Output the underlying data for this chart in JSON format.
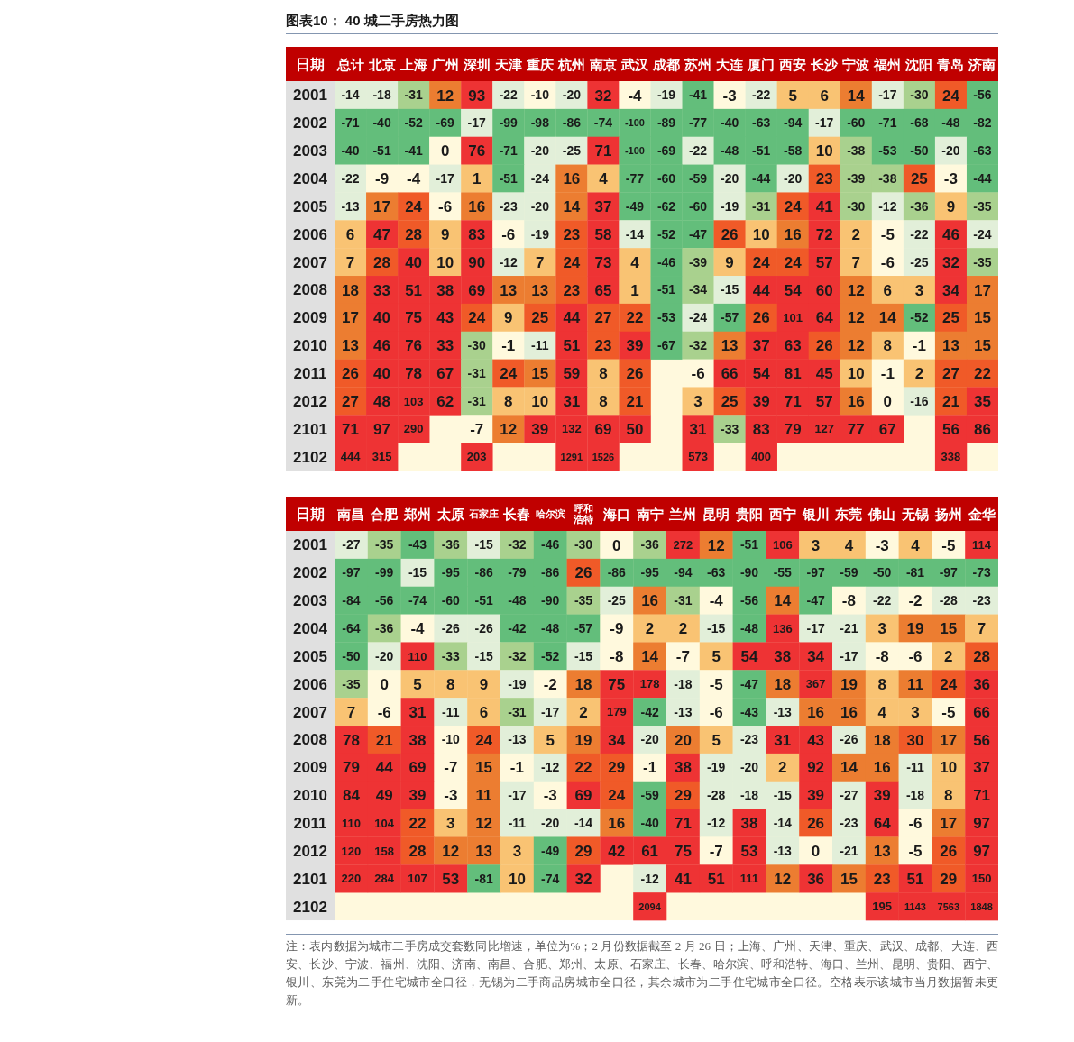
{
  "chart_data": [
    {
      "type": "heatmap",
      "title": "图表10： 40 城二手房热力图",
      "ylabel": "日期",
      "data_labels": true,
      "categories": [
        "总计",
        "北京",
        "上海",
        "广州",
        "深圳",
        "天津",
        "重庆",
        "杭州",
        "南京",
        "武汉",
        "成都",
        "苏州",
        "大连",
        "厦门",
        "西安",
        "长沙",
        "宁波",
        "福州",
        "沈阳",
        "青岛",
        "济南"
      ],
      "y_categories": [
        "2001",
        "2002",
        "2003",
        "2004",
        "2005",
        "2006",
        "2007",
        "2008",
        "2009",
        "2010",
        "2011",
        "2012",
        "2101",
        "2102"
      ],
      "cells": [
        [
          -14,
          -18,
          -31,
          12,
          93,
          -22,
          -10,
          -20,
          32,
          -4,
          -19,
          -41,
          -3,
          -22,
          5,
          6,
          14,
          -17,
          -30,
          24,
          -56
        ],
        [
          -71,
          -40,
          -52,
          -69,
          -17,
          -99,
          -98,
          -86,
          -74,
          -100,
          -89,
          -77,
          -40,
          -63,
          -94,
          -17,
          -60,
          -71,
          -68,
          -48,
          -82
        ],
        [
          -40,
          -51,
          -41,
          0,
          76,
          -71,
          -20,
          -25,
          71,
          -100,
          -69,
          -22,
          -48,
          -51,
          -58,
          10,
          -38,
          -53,
          -50,
          -20,
          -63
        ],
        [
          -22,
          -9,
          -4,
          -17,
          1,
          -51,
          -24,
          16,
          4,
          -77,
          -60,
          -59,
          -20,
          -44,
          -20,
          23,
          -39,
          -38,
          25,
          -3,
          -44
        ],
        [
          -13,
          17,
          24,
          -6,
          16,
          -23,
          -20,
          14,
          37,
          -49,
          -62,
          -60,
          -19,
          -31,
          24,
          41,
          -30,
          -12,
          -36,
          9,
          -35
        ],
        [
          6,
          47,
          28,
          9,
          83,
          -6,
          -19,
          23,
          58,
          -14,
          -52,
          -47,
          26,
          10,
          16,
          72,
          2,
          -5,
          -22,
          46,
          -24
        ],
        [
          7,
          28,
          40,
          10,
          90,
          -12,
          7,
          24,
          73,
          4,
          -46,
          -39,
          9,
          24,
          24,
          57,
          7,
          -6,
          -25,
          32,
          -35
        ],
        [
          18,
          33,
          51,
          38,
          69,
          13,
          13,
          23,
          65,
          1,
          -51,
          -34,
          -15,
          44,
          54,
          60,
          12,
          6,
          3,
          34,
          17
        ],
        [
          17,
          40,
          75,
          43,
          24,
          9,
          25,
          44,
          27,
          22,
          -53,
          -24,
          -57,
          26,
          101,
          64,
          12,
          14,
          -52,
          25,
          15
        ],
        [
          13,
          46,
          76,
          33,
          -30,
          -1,
          -11,
          51,
          23,
          39,
          -67,
          -32,
          13,
          37,
          63,
          26,
          12,
          8,
          -1,
          13,
          15
        ],
        [
          26,
          40,
          78,
          67,
          -31,
          24,
          15,
          59,
          8,
          26,
          null,
          -6,
          66,
          54,
          81,
          45,
          10,
          -1,
          2,
          27,
          22
        ],
        [
          27,
          48,
          103,
          62,
          -31,
          8,
          10,
          31,
          8,
          21,
          null,
          3,
          25,
          39,
          71,
          57,
          16,
          0,
          -16,
          21,
          35
        ],
        [
          71,
          97,
          290,
          null,
          -7,
          12,
          39,
          132,
          69,
          50,
          null,
          31,
          -33,
          83,
          79,
          127,
          77,
          67,
          null,
          56,
          86
        ],
        [
          444,
          315,
          null,
          null,
          203,
          null,
          null,
          1291,
          1526,
          null,
          null,
          573,
          null,
          400,
          null,
          null,
          null,
          null,
          null,
          338,
          null
        ]
      ]
    },
    {
      "type": "heatmap",
      "ylabel": "日期",
      "data_labels": true,
      "categories": [
        "南昌",
        "合肥",
        "郑州",
        "太原",
        "石家庄",
        "长春",
        "哈尔滨",
        "呼和浩特",
        "海口",
        "南宁",
        "兰州",
        "昆明",
        "贵阳",
        "西宁",
        "银川",
        "东莞",
        "佛山",
        "无锡",
        "扬州",
        "金华"
      ],
      "y_categories": [
        "2001",
        "2002",
        "2003",
        "2004",
        "2005",
        "2006",
        "2007",
        "2008",
        "2009",
        "2010",
        "2011",
        "2012",
        "2101",
        "2102"
      ],
      "cells": [
        [
          -27,
          -35,
          -43,
          -36,
          -15,
          -32,
          -46,
          -30,
          0,
          -36,
          272,
          12,
          -51,
          106,
          3,
          4,
          -3,
          4,
          -5,
          114
        ],
        [
          -97,
          -99,
          -15,
          -95,
          -86,
          -79,
          -86,
          26,
          -86,
          -95,
          -94,
          -63,
          -90,
          -55,
          -97,
          -59,
          -50,
          -81,
          -97,
          -73
        ],
        [
          -84,
          -56,
          -74,
          -60,
          -51,
          -48,
          -90,
          -35,
          -25,
          16,
          -31,
          -4,
          -56,
          14,
          -47,
          -8,
          -22,
          -2,
          -28,
          -23
        ],
        [
          -64,
          -36,
          -4,
          -26,
          -26,
          -42,
          -48,
          -57,
          -9,
          2,
          2,
          -15,
          -48,
          136,
          -17,
          -21,
          3,
          19,
          15,
          7
        ],
        [
          -50,
          -20,
          110,
          -33,
          -15,
          -32,
          -52,
          -15,
          -8,
          14,
          -7,
          5,
          54,
          38,
          34,
          -17,
          -8,
          -6,
          2,
          28
        ],
        [
          -35,
          0,
          5,
          8,
          9,
          -19,
          -2,
          18,
          75,
          178,
          -18,
          -5,
          -47,
          18,
          367,
          19,
          8,
          11,
          24,
          36
        ],
        [
          7,
          -6,
          31,
          -11,
          6,
          -31,
          -17,
          2,
          179,
          -42,
          -13,
          -6,
          -43,
          -13,
          16,
          16,
          4,
          3,
          -5,
          66
        ],
        [
          78,
          21,
          38,
          -10,
          24,
          -13,
          5,
          19,
          34,
          -20,
          20,
          5,
          -23,
          31,
          43,
          -26,
          18,
          30,
          17,
          56
        ],
        [
          79,
          44,
          69,
          -7,
          15,
          -1,
          -12,
          22,
          29,
          -1,
          38,
          -19,
          -20,
          2,
          92,
          14,
          16,
          -11,
          10,
          37
        ],
        [
          84,
          49,
          39,
          -3,
          11,
          -17,
          -3,
          69,
          24,
          -59,
          29,
          -28,
          -18,
          -15,
          39,
          -27,
          39,
          -18,
          8,
          71
        ],
        [
          110,
          104,
          22,
          3,
          12,
          -11,
          -20,
          -14,
          16,
          -40,
          71,
          -12,
          38,
          -14,
          26,
          -23,
          64,
          -6,
          17,
          97
        ],
        [
          120,
          158,
          28,
          12,
          13,
          3,
          -49,
          29,
          42,
          61,
          75,
          -7,
          53,
          -13,
          0,
          -21,
          13,
          -5,
          26,
          97
        ],
        [
          220,
          284,
          107,
          53,
          -81,
          10,
          -74,
          32,
          null,
          -12,
          41,
          51,
          111,
          12,
          36,
          15,
          23,
          51,
          29,
          150
        ],
        [
          null,
          null,
          null,
          null,
          null,
          null,
          null,
          null,
          null,
          2094,
          null,
          null,
          null,
          null,
          null,
          null,
          195,
          1143,
          7563,
          1848
        ]
      ],
      "annotations": [
        "注：表内数据为城市二手房成交套数同比增速，单位为%；2 月份数据截至 2 月 26 日；上海、广州、天津、重庆、武汉、成都、大连、西安、长沙、宁波、福州、沈阳、济南、南昌、合肥、郑州、太原、石家庄、长春、哈尔滨、呼和浩特、海口、兰州、昆明、贵阳、西宁、银川、东莞为二手住宅城市全口径，无锡为二手商品房城市全口径，其余城市为二手住宅城市全口径。空格表示该城市当月数据暂未更新。"
      ]
    }
  ]
}
